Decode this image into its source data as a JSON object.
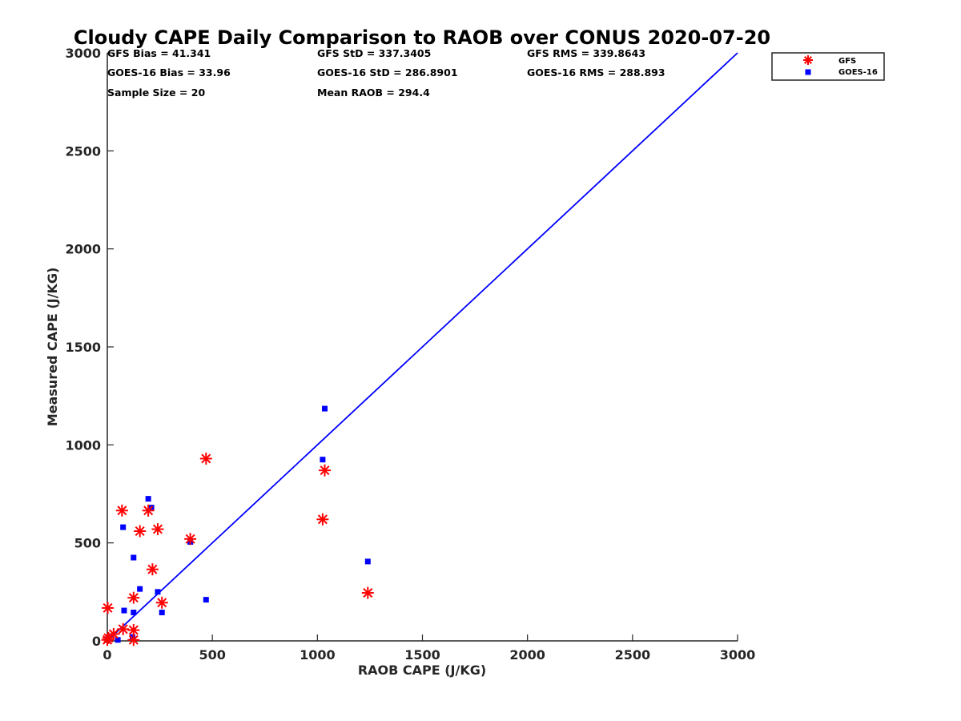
{
  "chart_data": {
    "type": "scatter",
    "title": "Cloudy CAPE Daily Comparison to RAOB over CONUS 2020-07-20",
    "xlabel": "RAOB CAPE (J/KG)",
    "ylabel": "Measured CAPE (J/KG)",
    "xlim": [
      0,
      3000
    ],
    "ylim": [
      0,
      3000
    ],
    "xticks": [
      0,
      500,
      1000,
      1500,
      2000,
      2500,
      3000
    ],
    "yticks": [
      0,
      500,
      1000,
      1500,
      2000,
      2500,
      3000
    ],
    "grid": false,
    "legend_position": "top-right outside",
    "stats": [
      [
        "GFS Bias = 41.341",
        "GFS StD = 337.3405",
        "GFS RMS = 339.8643"
      ],
      [
        "GOES-16 Bias = 33.96",
        "GOES-16 StD = 286.8901",
        "GOES-16 RMS = 288.893"
      ],
      [
        "Sample Size = 20",
        "Mean RAOB = 294.4",
        ""
      ]
    ],
    "reference_line": {
      "name": "1:1",
      "color": "#0000ff",
      "points": [
        [
          0,
          0
        ],
        [
          3000,
          3000
        ]
      ]
    },
    "series": [
      {
        "name": "GFS",
        "marker": "asterisk",
        "color": "#ff0000",
        "points": [
          [
            2,
            168
          ],
          [
            0,
            5
          ],
          [
            5,
            15
          ],
          [
            30,
            35
          ],
          [
            75,
            60
          ],
          [
            125,
            55
          ],
          [
            125,
            5
          ],
          [
            125,
            220
          ],
          [
            70,
            665
          ],
          [
            155,
            560
          ],
          [
            195,
            665
          ],
          [
            215,
            365
          ],
          [
            240,
            570
          ],
          [
            260,
            195
          ],
          [
            395,
            520
          ],
          [
            470,
            930
          ],
          [
            1025,
            620
          ],
          [
            1035,
            870
          ],
          [
            1240,
            245
          ]
        ]
      },
      {
        "name": "GOES-16",
        "marker": "square",
        "color": "#0000ff",
        "points": [
          [
            0,
            5
          ],
          [
            5,
            15
          ],
          [
            50,
            5
          ],
          [
            75,
            580
          ],
          [
            80,
            155
          ],
          [
            120,
            20
          ],
          [
            125,
            145
          ],
          [
            125,
            425
          ],
          [
            155,
            265
          ],
          [
            195,
            725
          ],
          [
            210,
            680
          ],
          [
            240,
            250
          ],
          [
            260,
            145
          ],
          [
            395,
            505
          ],
          [
            470,
            210
          ],
          [
            1025,
            925
          ],
          [
            1035,
            1185
          ],
          [
            1240,
            405
          ]
        ]
      }
    ]
  }
}
